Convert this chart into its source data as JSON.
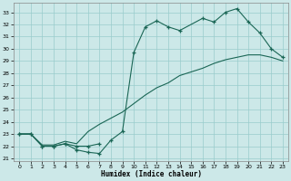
{
  "xlabel": "Humidex (Indice chaleur)",
  "bg_color": "#cce8e8",
  "grid_color": "#99cccc",
  "line_color": "#1a6655",
  "xlim": [
    -0.5,
    23.5
  ],
  "ylim": [
    20.8,
    33.8
  ],
  "xticks": [
    0,
    1,
    2,
    3,
    4,
    5,
    6,
    7,
    8,
    9,
    10,
    11,
    12,
    13,
    14,
    15,
    16,
    17,
    18,
    19,
    20,
    21,
    22,
    23
  ],
  "yticks": [
    21,
    22,
    23,
    24,
    25,
    26,
    27,
    28,
    29,
    30,
    31,
    32,
    33
  ],
  "curve1_x": [
    0,
    1,
    2,
    3,
    4,
    5,
    6,
    7,
    8,
    9,
    10,
    11,
    12,
    13,
    14,
    16,
    17,
    18,
    19,
    20,
    21,
    22,
    23
  ],
  "curve1_y": [
    23,
    23,
    22,
    22,
    22.2,
    21.7,
    21.5,
    21.4,
    22.5,
    23.2,
    29.7,
    31.8,
    32.3,
    31.8,
    31.5,
    32.5,
    32.2,
    33.0,
    33.3,
    32.2,
    31.3,
    30.0,
    29.3
  ],
  "curve2_x": [
    0,
    1,
    2,
    3,
    4,
    5,
    6,
    7
  ],
  "curve2_y": [
    23,
    23,
    22,
    22,
    22.2,
    22.0,
    22.0,
    22.2
  ],
  "curve3_x": [
    0,
    1,
    2,
    3,
    4,
    5,
    6,
    7,
    8,
    9,
    10,
    11,
    12,
    13,
    14,
    15,
    16,
    17,
    18,
    19,
    20,
    21,
    22,
    23
  ],
  "curve3_y": [
    23,
    23,
    22.1,
    22.1,
    22.4,
    22.2,
    23.2,
    23.8,
    24.3,
    24.8,
    25.5,
    26.2,
    26.8,
    27.2,
    27.8,
    28.1,
    28.4,
    28.8,
    29.1,
    29.3,
    29.5,
    29.5,
    29.3,
    29.0
  ]
}
